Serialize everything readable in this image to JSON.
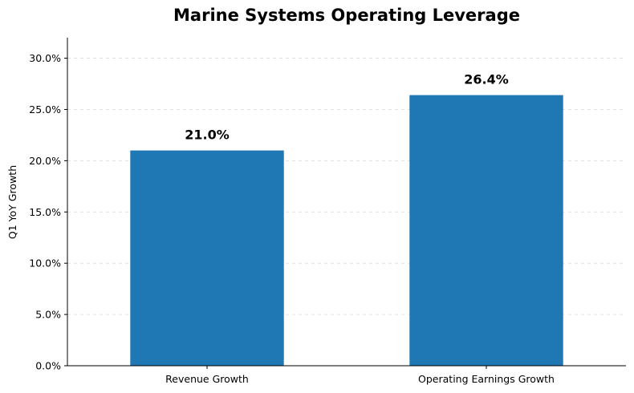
{
  "chart_data": {
    "type": "bar",
    "title": "Marine Systems Operating Leverage",
    "xlabel": "",
    "ylabel": "Q1 YoY Growth",
    "categories": [
      "Revenue Growth",
      "Operating Earnings Growth"
    ],
    "values": [
      21.0,
      26.4
    ],
    "data_labels": [
      "21.0%",
      "26.4%"
    ],
    "ylim": [
      0,
      32
    ],
    "yticks": [
      0,
      5,
      10,
      15,
      20,
      25,
      30
    ],
    "ytick_labels": [
      "0.0%",
      "5.0%",
      "10.0%",
      "15.0%",
      "20.0%",
      "25.0%",
      "30.0%"
    ],
    "bar_color": "#1f77b4",
    "grid": "y-dashed",
    "legend": "none"
  }
}
